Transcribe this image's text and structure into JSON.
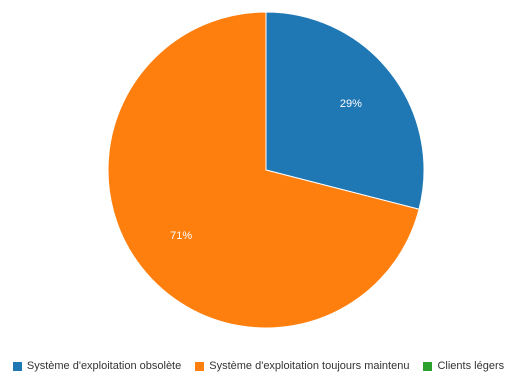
{
  "chart_data": {
    "type": "pie",
    "categories": [
      "Système d'exploitation obsolète",
      "Système d'exploitation toujours maintenu",
      "Clients légers"
    ],
    "values": [
      29,
      71,
      0
    ],
    "labels": [
      "29%",
      "71%",
      ""
    ],
    "colors": [
      "#1f77b4",
      "#ff7f0e",
      "#2ca02c"
    ],
    "legend_position": "bottom"
  }
}
